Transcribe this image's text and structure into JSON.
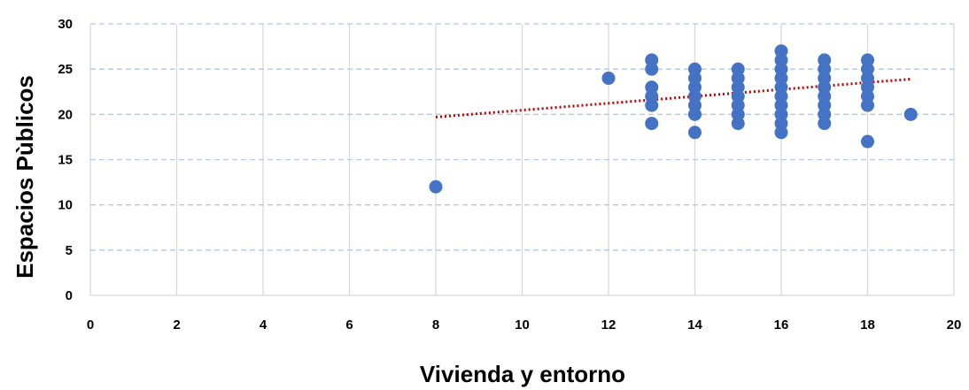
{
  "chart_data": {
    "type": "scatter",
    "title": "",
    "xlabel": "Vivienda y entorno",
    "ylabel": "Espacios Pùblicos",
    "xlim": [
      0,
      20
    ],
    "ylim": [
      0,
      30
    ],
    "x_ticks": [
      "0",
      "2",
      "4",
      "6",
      "8",
      "10",
      "12",
      "14",
      "16",
      "18",
      "20"
    ],
    "y_ticks": [
      "0",
      "5",
      "10",
      "15",
      "20",
      "25",
      "30"
    ],
    "grid": {
      "vertical": "solid",
      "horizontal": "dashed"
    },
    "series": [
      {
        "points": [
          [
            8,
            12
          ],
          [
            12,
            24
          ],
          [
            13,
            19
          ],
          [
            13,
            21
          ],
          [
            13,
            22
          ],
          [
            13,
            23
          ],
          [
            13,
            25
          ],
          [
            13,
            26
          ],
          [
            14,
            18
          ],
          [
            14,
            20
          ],
          [
            14,
            21
          ],
          [
            14,
            22
          ],
          [
            14,
            23
          ],
          [
            14,
            24
          ],
          [
            14,
            25
          ],
          [
            15,
            19
          ],
          [
            15,
            20
          ],
          [
            15,
            21
          ],
          [
            15,
            22
          ],
          [
            15,
            23
          ],
          [
            15,
            24
          ],
          [
            15,
            25
          ],
          [
            16,
            18
          ],
          [
            16,
            19
          ],
          [
            16,
            20
          ],
          [
            16,
            21
          ],
          [
            16,
            22
          ],
          [
            16,
            23
          ],
          [
            16,
            24
          ],
          [
            16,
            25
          ],
          [
            16,
            26
          ],
          [
            16,
            27
          ],
          [
            17,
            19
          ],
          [
            17,
            20
          ],
          [
            17,
            21
          ],
          [
            17,
            22
          ],
          [
            17,
            23
          ],
          [
            17,
            24
          ],
          [
            17,
            25
          ],
          [
            17,
            26
          ],
          [
            18,
            17
          ],
          [
            18,
            21
          ],
          [
            18,
            22
          ],
          [
            18,
            23
          ],
          [
            18,
            24
          ],
          [
            18,
            25
          ],
          [
            18,
            26
          ],
          [
            19,
            20
          ]
        ]
      }
    ],
    "trendline": {
      "type": "linear",
      "x_range": [
        8,
        19
      ],
      "y_start": 19.7,
      "y_end": 23.9,
      "style": "dotted"
    },
    "colors": {
      "points": "#4472C4",
      "trendline": "#C00000",
      "grid_h": "#B4C7E7",
      "grid_v": "#D9D9D9",
      "axis": "#D9D9D9"
    }
  }
}
